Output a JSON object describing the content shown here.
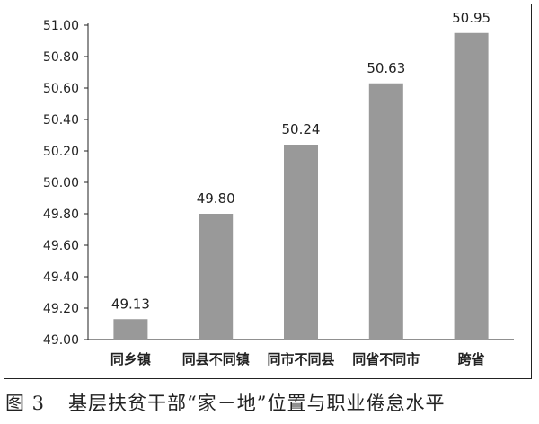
{
  "caption": {
    "figure_number": "图 3",
    "text": "基层扶贫干部“家－地”位置与职业倦怠水平"
  },
  "colors": {
    "bar": "#999999",
    "axis": "#222222",
    "text": "#222222"
  },
  "chart_data": {
    "type": "bar",
    "categories": [
      "同乡镇",
      "同县不同镇",
      "同市不同县",
      "同省不同市",
      "跨省"
    ],
    "values": [
      49.13,
      49.8,
      50.24,
      50.63,
      50.95
    ],
    "data_labels": [
      "49.13",
      "49.80",
      "50.24",
      "50.63",
      "50.95"
    ],
    "ylim": [
      49.0,
      51.0
    ],
    "yticks": [
      49.0,
      49.2,
      49.4,
      49.6,
      49.8,
      50.0,
      50.2,
      50.4,
      50.6,
      50.8,
      51.0
    ],
    "ytick_labels": [
      "49.00",
      "49.20",
      "49.40",
      "49.60",
      "49.80",
      "50.00",
      "50.20",
      "50.40",
      "50.60",
      "50.80",
      "51.00"
    ],
    "grid": false,
    "legend": "none"
  }
}
